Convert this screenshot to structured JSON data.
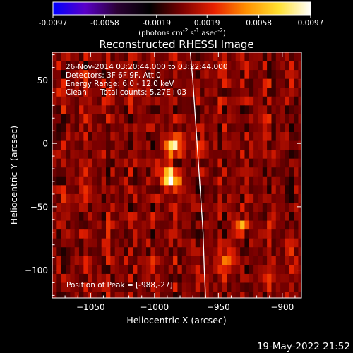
{
  "colorbar": {
    "ticks": [
      "-0.0097",
      "-0.0058",
      "-0.0019",
      "0.0019",
      "0.0058",
      "0.0097"
    ],
    "tick_values": [
      -0.0097,
      -0.0058,
      -0.0019,
      0.0019,
      0.0058,
      0.0097
    ],
    "range": [
      -0.0097,
      0.0097
    ],
    "unit_pre": "(photons cm",
    "unit_exp1": "-2",
    "unit_mid1": " s",
    "unit_exp2": "-1",
    "unit_mid2": " asec",
    "unit_exp3": "-2",
    "unit_post": ")",
    "colormap": [
      "#0000ff",
      "#5a00c8",
      "#2a0033",
      "#000000",
      "#7a0000",
      "#e82000",
      "#ff9000",
      "#ffe030",
      "#ffffff"
    ]
  },
  "chart_data": {
    "type": "heatmap",
    "title": "Reconstructed RHESSI Image",
    "xlabel": "Heliocentric X (arcsec)",
    "ylabel": "Heliocentric Y (arcsec)",
    "xlim": [
      -1080,
      -885
    ],
    "ylim": [
      -122,
      72
    ],
    "xticks": [
      -1050,
      -1000,
      -950,
      -900
    ],
    "yticks": [
      50,
      0,
      -50,
      -100
    ],
    "annotations": {
      "time_range": "26-Nov-2014 03:20:44.000 to 03:22:44.000",
      "detectors": "Detectors: 3F 6F 9F, Att 0",
      "energy_range": "Energy Range: 6.0 - 12.0 keV",
      "method": "Clean",
      "total_counts": "Total counts: 5.27E+03",
      "peak": "Position of Peak = [-988,-27]"
    },
    "peak_position": [
      -988,
      -27
    ],
    "sources": [
      {
        "x": -988,
        "y": -27,
        "intensity": 0.0097
      },
      {
        "x": -985,
        "y": -2,
        "intensity": 0.0072
      },
      {
        "x": -943,
        "y": -90,
        "intensity": 0.0045
      },
      {
        "x": -932,
        "y": -65,
        "intensity": 0.0038
      }
    ],
    "limb_curve": [
      [
        -972,
        72
      ],
      [
        -970,
        50
      ],
      [
        -968,
        20
      ],
      [
        -966,
        -10
      ],
      [
        -964,
        -40
      ],
      [
        -962,
        -70
      ],
      [
        -961,
        -100
      ],
      [
        -960,
        -122
      ]
    ]
  },
  "footer": {
    "date": "19-May-2022 21:52"
  }
}
